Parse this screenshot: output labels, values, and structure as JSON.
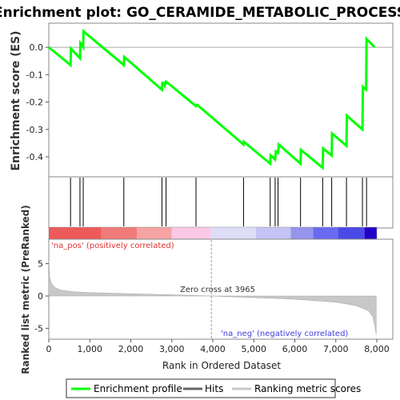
{
  "chart_data": {
    "type": "line",
    "title": "Enrichment plot: GO_CERAMIDE_METABOLIC_PROCESS",
    "es_panel": {
      "ylabel": "Enrichment score (ES)",
      "y_ticks": [
        "0.0",
        "-0.1",
        "-0.2",
        "-0.3",
        "-0.4"
      ],
      "ylim": [
        -0.47,
        0.085
      ],
      "xlim": [
        0,
        8000
      ],
      "series_name": "Enrichment profile",
      "color": "#00ff00",
      "points": [
        [
          0,
          0.0
        ],
        [
          530,
          -0.065
        ],
        [
          540,
          -0.005
        ],
        [
          760,
          -0.04
        ],
        [
          770,
          0.015
        ],
        [
          840,
          0.0
        ],
        [
          845,
          0.058
        ],
        [
          1830,
          -0.065
        ],
        [
          1840,
          -0.035
        ],
        [
          2760,
          -0.155
        ],
        [
          2770,
          -0.13
        ],
        [
          2800,
          -0.13
        ],
        [
          2830,
          -0.14
        ],
        [
          2860,
          -0.125
        ],
        [
          3590,
          -0.215
        ],
        [
          3620,
          -0.21
        ],
        [
          4750,
          -0.355
        ],
        [
          4760,
          -0.345
        ],
        [
          5400,
          -0.425
        ],
        [
          5410,
          -0.395
        ],
        [
          5520,
          -0.41
        ],
        [
          5540,
          -0.38
        ],
        [
          5590,
          -0.385
        ],
        [
          5610,
          -0.355
        ],
        [
          6140,
          -0.425
        ],
        [
          6150,
          -0.375
        ],
        [
          6680,
          -0.44
        ],
        [
          6690,
          -0.37
        ],
        [
          6900,
          -0.395
        ],
        [
          6910,
          -0.315
        ],
        [
          7260,
          -0.36
        ],
        [
          7270,
          -0.25
        ],
        [
          7650,
          -0.3
        ],
        [
          7660,
          -0.145
        ],
        [
          7740,
          -0.155
        ],
        [
          7750,
          0.03
        ],
        [
          7950,
          0.0
        ]
      ]
    },
    "hits_panel": {
      "positions": [
        530,
        760,
        840,
        1830,
        2760,
        2860,
        3590,
        4750,
        5400,
        5520,
        5590,
        6140,
        6680,
        6900,
        7260,
        7650,
        7750
      ]
    },
    "rank_panel": {
      "ylabel": "Ranked list metric (PreRanked)",
      "xlabel": "Rank in Ordered Dataset",
      "y_ticks": [
        "5",
        "0",
        "-5"
      ],
      "x_ticks": [
        "0",
        "1,000",
        "2,000",
        "3,000",
        "4,000",
        "5,000",
        "6,000",
        "7,000",
        "8,000"
      ],
      "ylim": [
        -6.3,
        8.8
      ],
      "xlim": [
        0,
        8000
      ],
      "zero_cross_label": "Zero cross at 3965",
      "zero_cross": 3965,
      "pos_label": "'na_pos' (positively correlated)",
      "neg_label": "'na_neg' (negatively correlated)",
      "curve": [
        [
          0,
          5.6
        ],
        [
          20,
          3.0
        ],
        [
          60,
          2.0
        ],
        [
          150,
          1.3
        ],
        [
          300,
          0.9
        ],
        [
          600,
          0.65
        ],
        [
          1000,
          0.52
        ],
        [
          2000,
          0.35
        ],
        [
          3000,
          0.18
        ],
        [
          3965,
          0.0
        ],
        [
          5000,
          -0.25
        ],
        [
          6000,
          -0.5
        ],
        [
          7000,
          -0.95
        ],
        [
          7500,
          -1.5
        ],
        [
          7800,
          -2.3
        ],
        [
          7900,
          -3.2
        ],
        [
          7950,
          -4.5
        ],
        [
          7985,
          -6.0
        ]
      ]
    },
    "heat_segments": [
      {
        "x0": 0,
        "x1": 1280,
        "color": "#ed5a5a"
      },
      {
        "x0": 1280,
        "x1": 2150,
        "color": "#f07a7a"
      },
      {
        "x0": 2150,
        "x1": 3000,
        "color": "#f5a3a3"
      },
      {
        "x0": 3000,
        "x1": 3950,
        "color": "#fbc8e6"
      },
      {
        "x0": 3950,
        "x1": 5050,
        "color": "#ddddf8"
      },
      {
        "x0": 5050,
        "x1": 5900,
        "color": "#c4c4f4"
      },
      {
        "x0": 5900,
        "x1": 6450,
        "color": "#9595ee"
      },
      {
        "x0": 6450,
        "x1": 7050,
        "color": "#6a6af0"
      },
      {
        "x0": 7050,
        "x1": 7700,
        "color": "#4a4ae8"
      },
      {
        "x0": 7700,
        "x1": 8000,
        "color": "#2400c8"
      }
    ],
    "legend": [
      {
        "label": "Enrichment profile",
        "color": "#00ff00"
      },
      {
        "label": "Hits",
        "color": "#666666"
      },
      {
        "label": "Ranking metric scores",
        "color": "#c8c8c8"
      }
    ]
  }
}
